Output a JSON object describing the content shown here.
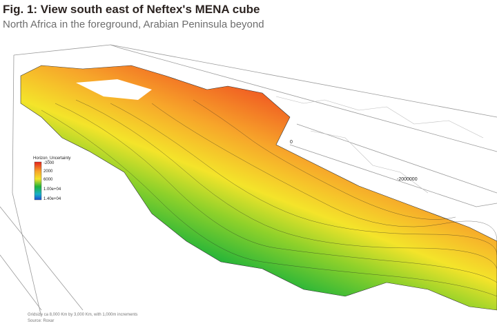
{
  "header": {
    "title": "Fig. 1: View south east of Neftex's MENA cube",
    "subtitle": "North Africa in the foreground, Arabian Peninsula beyond"
  },
  "figure": {
    "legend": {
      "title": "Horizon_Uncertainty",
      "labels": [
        "-2000",
        "2000",
        "6000",
        "1.00e+04",
        "1.40e+04"
      ]
    },
    "axis_labels": [
      "0",
      "-2000000"
    ]
  },
  "footer": {
    "note": "Gridsize ca 8,000 Km by 3,000 Km, with 1,000m increments",
    "source": "Source: Roxar"
  }
}
